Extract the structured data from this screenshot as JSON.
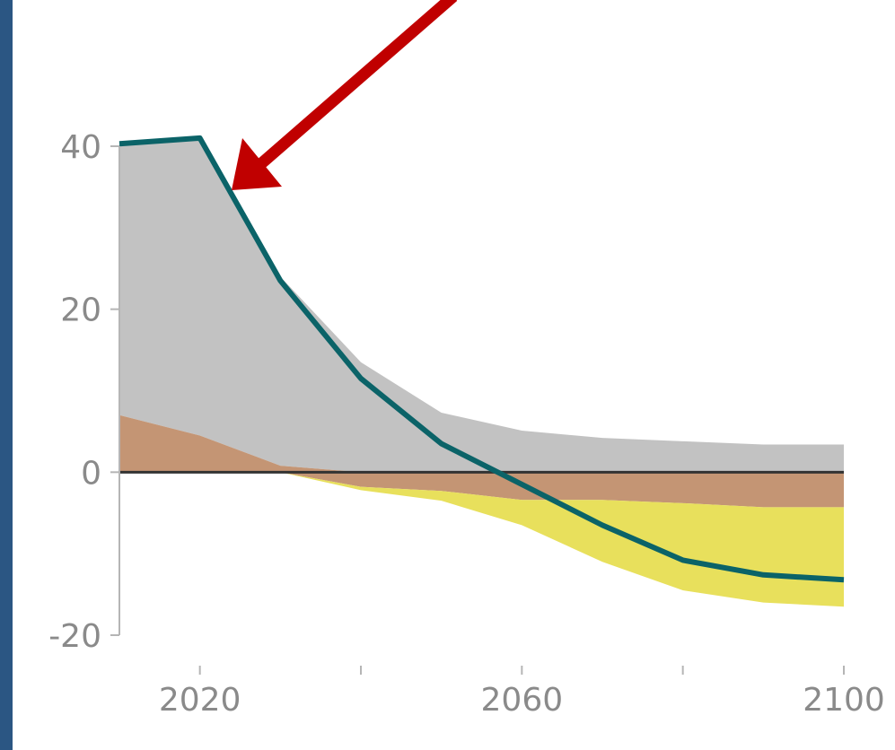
{
  "chart_data": {
    "type": "area",
    "xlabel": "",
    "ylabel": "",
    "xlim": [
      2010,
      2100
    ],
    "ylim": [
      -20,
      40
    ],
    "x_ticks": [
      2020,
      2060,
      2100
    ],
    "x_minor_ticks": [
      2040,
      2080
    ],
    "y_ticks": [
      40,
      20,
      0,
      -20
    ],
    "x_tick_labels": [
      "2020",
      "2060",
      "2100"
    ],
    "y_tick_labels": [
      "40",
      "20",
      "0",
      "-20"
    ],
    "grid": false,
    "legend": "none",
    "x": [
      2010,
      2020,
      2030,
      2040,
      2050,
      2060,
      2070,
      2080,
      2090,
      2100
    ],
    "series": [
      {
        "color": "#c2c2c2",
        "lower": [
          7,
          4.5,
          0.8,
          0,
          0,
          0,
          0,
          0,
          0,
          0
        ],
        "upper": [
          40.3,
          41,
          24,
          13.5,
          7.3,
          5.1,
          4.2,
          3.8,
          3.4,
          3.4
        ]
      },
      {
        "color": "#c49574",
        "lower": [
          0,
          0,
          0,
          -1.8,
          -2.3,
          -3.4,
          -3.4,
          -3.8,
          -4.3,
          -4.3
        ],
        "upper": [
          7,
          4.5,
          0.8,
          0,
          0,
          0,
          0,
          0,
          0,
          0
        ]
      },
      {
        "color": "#e8e05c",
        "lower": [
          0,
          0,
          0,
          -2.2,
          -3.5,
          -6.5,
          -11,
          -14.5,
          -16,
          -16.5
        ],
        "upper": [
          0,
          0,
          0,
          -1.8,
          -2.3,
          -3.4,
          -3.4,
          -3.8,
          -4.3,
          -4.3
        ]
      },
      {
        "color": "#0b6368",
        "type": "line",
        "values": [
          40.3,
          41,
          23.5,
          11.5,
          3.5,
          -1.5,
          -6.5,
          -10.8,
          -12.6,
          -13.2
        ]
      }
    ]
  },
  "annotation": {
    "type": "arrow",
    "color": "#c00000"
  }
}
